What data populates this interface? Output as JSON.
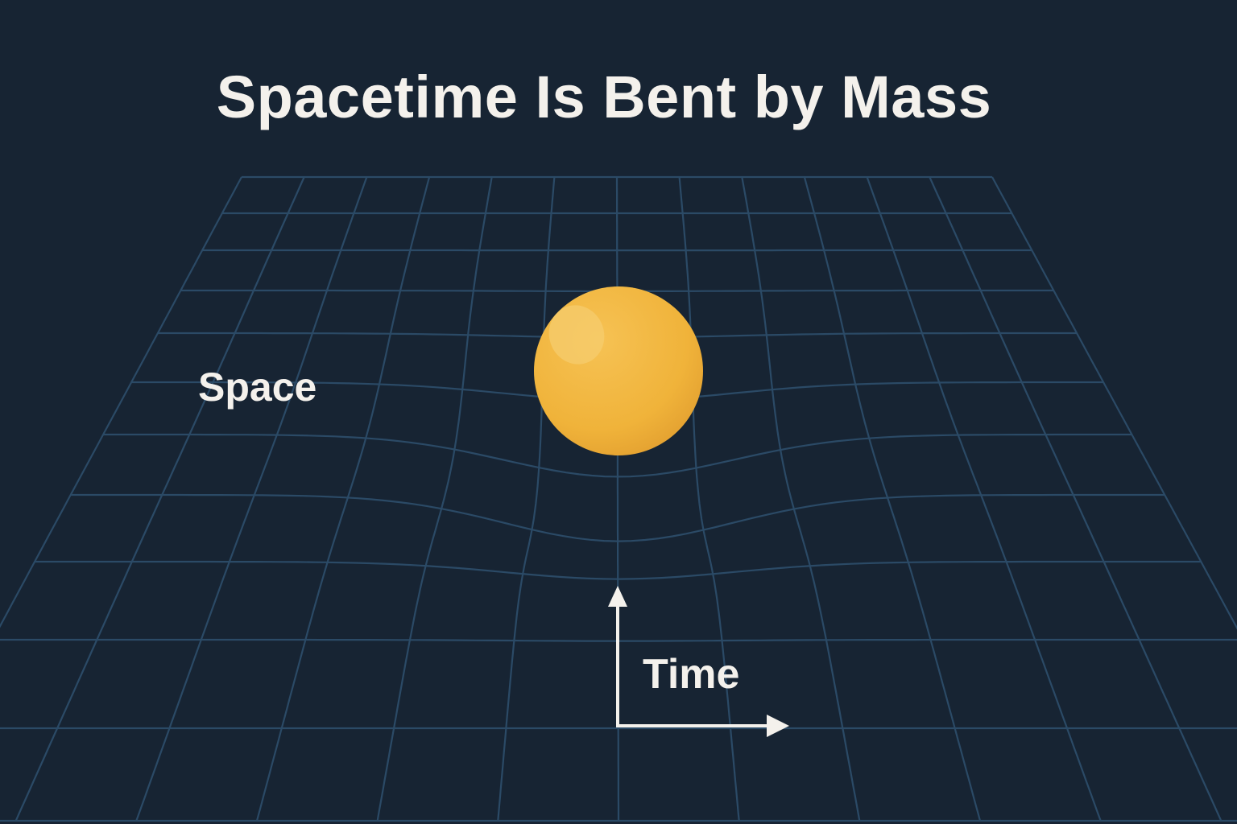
{
  "title": "Spacetime Is Bent by Mass",
  "labels": {
    "space": "Space",
    "time": "Time"
  },
  "colors": {
    "background": "#172433",
    "grid_line": "#2b4a66",
    "text": "#f4f1ec",
    "mass_fill": "#f0b33a",
    "mass_shadow": "#d9962a",
    "mass_highlight": "#f6cc6e",
    "arrow": "#f4f1ec"
  },
  "icons": {
    "mass": "sphere",
    "axes": "arrow-up-and-right"
  }
}
